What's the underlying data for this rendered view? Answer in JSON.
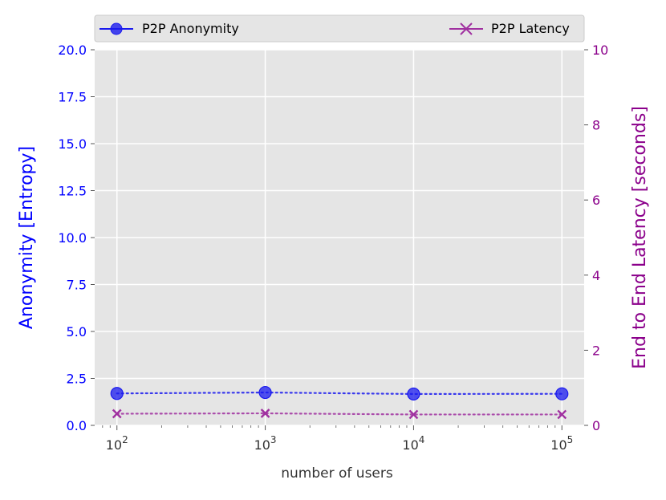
{
  "chart_data": {
    "type": "line",
    "xlabel": "number of users",
    "ylabel_left": "Anonymity [Entropy]",
    "ylabel_right": "End to End Latency [seconds]",
    "x_scale": "log",
    "x": [
      100,
      1000,
      10000,
      100000
    ],
    "x_tick_labels": [
      {
        "base": "10",
        "exp": "2"
      },
      {
        "base": "10",
        "exp": "3"
      },
      {
        "base": "10",
        "exp": "4"
      },
      {
        "base": "10",
        "exp": "5"
      }
    ],
    "ylim_left": [
      0,
      20
    ],
    "yticks_left": [
      "0.0",
      "2.5",
      "5.0",
      "7.5",
      "10.0",
      "12.5",
      "15.0",
      "17.5",
      "20.0"
    ],
    "ylim_right": [
      0,
      10
    ],
    "yticks_right": [
      "0",
      "2",
      "4",
      "6",
      "8",
      "10"
    ],
    "grid": true,
    "legend_position": "top",
    "series": [
      {
        "name": "P2P Anonymity",
        "axis": "left",
        "marker": "circle",
        "color": "#1a1aee",
        "values": [
          1.7,
          1.75,
          1.67,
          1.68
        ]
      },
      {
        "name": "P2P Latency",
        "axis": "right",
        "marker": "x",
        "color": "#a030a0",
        "values": [
          0.31,
          0.32,
          0.29,
          0.29
        ]
      }
    ],
    "colors": {
      "left_axis": "#0000ff",
      "right_axis": "#8b008b",
      "plot_background": "#e5e5e5",
      "grid": "#ffffff"
    }
  }
}
